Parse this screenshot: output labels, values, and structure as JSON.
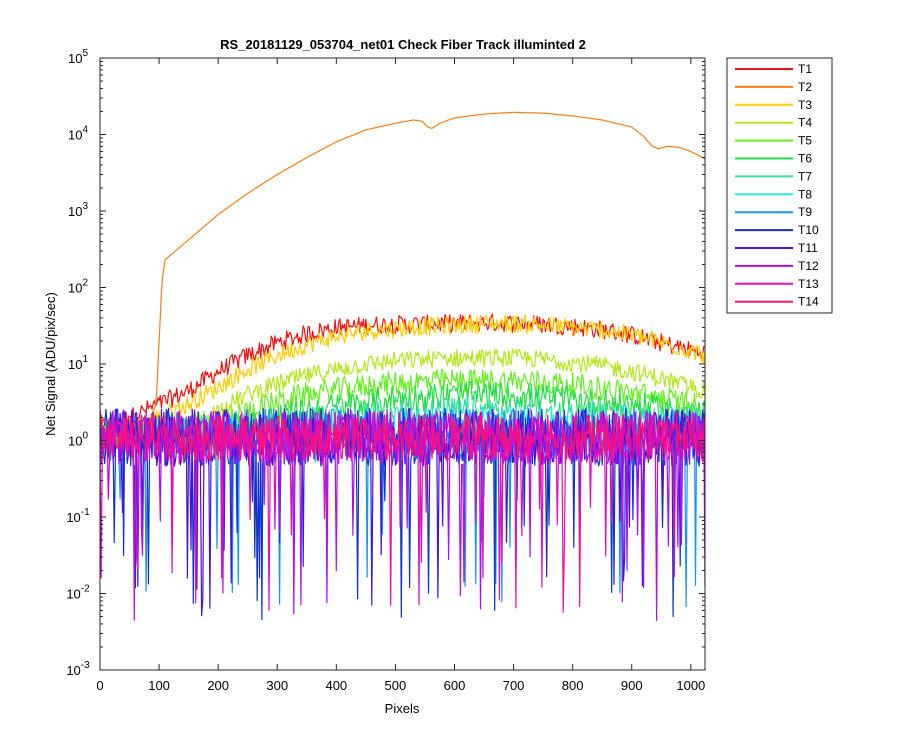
{
  "chart_data": {
    "type": "line",
    "title": "RS_20181129_053704_net01   Check Fiber     Track illuminted 2",
    "xlabel": "Pixels",
    "ylabel": "Net Signal (ADU/pix/sec)",
    "xlim": [
      0,
      1024
    ],
    "ylim": [
      0.001,
      100000
    ],
    "yscale": "log",
    "xticks": [
      0,
      100,
      200,
      300,
      400,
      500,
      600,
      700,
      800,
      900,
      1000
    ],
    "yticks": [
      {
        "value": 0.001,
        "base": "10",
        "exp": "-3"
      },
      {
        "value": 0.01,
        "base": "10",
        "exp": "-2"
      },
      {
        "value": 0.1,
        "base": "10",
        "exp": "-1"
      },
      {
        "value": 1,
        "base": "10",
        "exp": "0"
      },
      {
        "value": 10,
        "base": "10",
        "exp": "1"
      },
      {
        "value": 100,
        "base": "10",
        "exp": "2"
      },
      {
        "value": 1000,
        "base": "10",
        "exp": "3"
      },
      {
        "value": 10000,
        "base": "10",
        "exp": "4"
      },
      {
        "value": 100000,
        "base": "10",
        "exp": "5"
      }
    ],
    "grid": false,
    "legend_position": "outside-right",
    "series": [
      {
        "name": "T1",
        "color": "#ee1111",
        "noise": 0.12,
        "points": [
          [
            0,
            1.5
          ],
          [
            50,
            2
          ],
          [
            100,
            3
          ],
          [
            150,
            4.5
          ],
          [
            200,
            8
          ],
          [
            250,
            13
          ],
          [
            300,
            19
          ],
          [
            350,
            25
          ],
          [
            400,
            30
          ],
          [
            450,
            32
          ],
          [
            500,
            33
          ],
          [
            550,
            33
          ],
          [
            600,
            34
          ],
          [
            650,
            35
          ],
          [
            700,
            34
          ],
          [
            750,
            33
          ],
          [
            800,
            31
          ],
          [
            850,
            28
          ],
          [
            900,
            24
          ],
          [
            950,
            19
          ],
          [
            1000,
            15
          ],
          [
            1024,
            14
          ]
        ]
      },
      {
        "name": "T2",
        "color": "#f57f17",
        "noise": 0.0,
        "points": [
          [
            0,
            1.5
          ],
          [
            80,
            1.6
          ],
          [
            95,
            3
          ],
          [
            100,
            20
          ],
          [
            105,
            120
          ],
          [
            110,
            230
          ],
          [
            150,
            420
          ],
          [
            200,
            900
          ],
          [
            250,
            1700
          ],
          [
            300,
            3000
          ],
          [
            350,
            5000
          ],
          [
            400,
            8000
          ],
          [
            450,
            11500
          ],
          [
            500,
            14000
          ],
          [
            530,
            15500
          ],
          [
            545,
            15000
          ],
          [
            555,
            12500
          ],
          [
            562,
            12000
          ],
          [
            575,
            14000
          ],
          [
            600,
            16500
          ],
          [
            650,
            18500
          ],
          [
            700,
            19500
          ],
          [
            750,
            19000
          ],
          [
            800,
            17500
          ],
          [
            850,
            15500
          ],
          [
            900,
            12500
          ],
          [
            920,
            9500
          ],
          [
            935,
            7000
          ],
          [
            945,
            6500
          ],
          [
            960,
            7000
          ],
          [
            980,
            6800
          ],
          [
            1000,
            6000
          ],
          [
            1024,
            4800
          ]
        ]
      },
      {
        "name": "T3",
        "color": "#ffcc00",
        "noise": 0.12,
        "points": [
          [
            0,
            1.2
          ],
          [
            50,
            1.5
          ],
          [
            100,
            2
          ],
          [
            150,
            3
          ],
          [
            200,
            5
          ],
          [
            250,
            8.5
          ],
          [
            300,
            13
          ],
          [
            350,
            18
          ],
          [
            400,
            23
          ],
          [
            450,
            27
          ],
          [
            500,
            29
          ],
          [
            550,
            31
          ],
          [
            600,
            32
          ],
          [
            650,
            34
          ],
          [
            700,
            34
          ],
          [
            750,
            32
          ],
          [
            800,
            30
          ],
          [
            850,
            28
          ],
          [
            900,
            24
          ],
          [
            950,
            19
          ],
          [
            1000,
            15
          ],
          [
            1024,
            13
          ]
        ]
      },
      {
        "name": "T4",
        "color": "#b5e61d",
        "noise": 0.12,
        "points": [
          [
            0,
            1.1
          ],
          [
            100,
            1.2
          ],
          [
            150,
            1.5
          ],
          [
            200,
            2.5
          ],
          [
            250,
            4
          ],
          [
            300,
            5.5
          ],
          [
            350,
            7
          ],
          [
            400,
            8.5
          ],
          [
            450,
            10
          ],
          [
            500,
            11
          ],
          [
            550,
            11.5
          ],
          [
            600,
            12
          ],
          [
            650,
            12
          ],
          [
            700,
            12
          ],
          [
            750,
            11.5
          ],
          [
            800,
            10.5
          ],
          [
            850,
            9.5
          ],
          [
            900,
            8
          ],
          [
            950,
            6.5
          ],
          [
            1000,
            5
          ],
          [
            1024,
            4.5
          ]
        ]
      },
      {
        "name": "T5",
        "color": "#66ee22",
        "noise": 0.16,
        "points": [
          [
            0,
            1.1
          ],
          [
            150,
            1.2
          ],
          [
            200,
            1.6
          ],
          [
            250,
            2.4
          ],
          [
            300,
            3.2
          ],
          [
            350,
            4
          ],
          [
            400,
            4.6
          ],
          [
            450,
            5.2
          ],
          [
            500,
            5.6
          ],
          [
            550,
            5.9
          ],
          [
            600,
            6
          ],
          [
            650,
            6
          ],
          [
            700,
            6
          ],
          [
            750,
            5.8
          ],
          [
            800,
            5.3
          ],
          [
            850,
            4.8
          ],
          [
            900,
            4.2
          ],
          [
            950,
            3.6
          ],
          [
            1000,
            3
          ],
          [
            1024,
            2.7
          ]
        ]
      },
      {
        "name": "T6",
        "color": "#22dd44",
        "noise": 0.18,
        "points": [
          [
            0,
            1.1
          ],
          [
            200,
            1.3
          ],
          [
            300,
            2
          ],
          [
            400,
            2.8
          ],
          [
            500,
            3.5
          ],
          [
            600,
            3.9
          ],
          [
            700,
            3.9
          ],
          [
            800,
            3.4
          ],
          [
            900,
            2.9
          ],
          [
            1000,
            2.3
          ],
          [
            1024,
            2.2
          ]
        ]
      },
      {
        "name": "T7",
        "color": "#33ddaa",
        "noise": 0.2,
        "points": [
          [
            0,
            1.1
          ],
          [
            300,
            1.5
          ],
          [
            500,
            2.2
          ],
          [
            650,
            2.4
          ],
          [
            800,
            2.1
          ],
          [
            1024,
            1.7
          ]
        ]
      },
      {
        "name": "T8",
        "color": "#22eeee",
        "noise": 0.25,
        "points": [
          [
            0,
            1.1
          ],
          [
            400,
            1.4
          ],
          [
            650,
            1.6
          ],
          [
            1024,
            1.3
          ]
        ]
      },
      {
        "name": "T9",
        "color": "#1199ee",
        "noise": 0.35,
        "points": [
          [
            0,
            1.1
          ],
          [
            500,
            1.2
          ],
          [
            1024,
            1.1
          ]
        ]
      },
      {
        "name": "T10",
        "color": "#1133cc",
        "noise": 0.38,
        "points": [
          [
            0,
            1.1
          ],
          [
            1024,
            1.1
          ]
        ]
      },
      {
        "name": "T11",
        "color": "#4411dd",
        "noise": 0.38,
        "points": [
          [
            0,
            1.1
          ],
          [
            1024,
            1.1
          ]
        ]
      },
      {
        "name": "T12",
        "color": "#aa11ee",
        "noise": 0.36,
        "points": [
          [
            0,
            1.1
          ],
          [
            1024,
            1.1
          ]
        ]
      },
      {
        "name": "T13",
        "color": "#dd11bb",
        "noise": 0.34,
        "points": [
          [
            0,
            1.1
          ],
          [
            1024,
            1.1
          ]
        ]
      },
      {
        "name": "T14",
        "color": "#ff1177",
        "noise": 0.3,
        "points": [
          [
            0,
            1.1
          ],
          [
            1024,
            1.1
          ]
        ]
      }
    ]
  }
}
